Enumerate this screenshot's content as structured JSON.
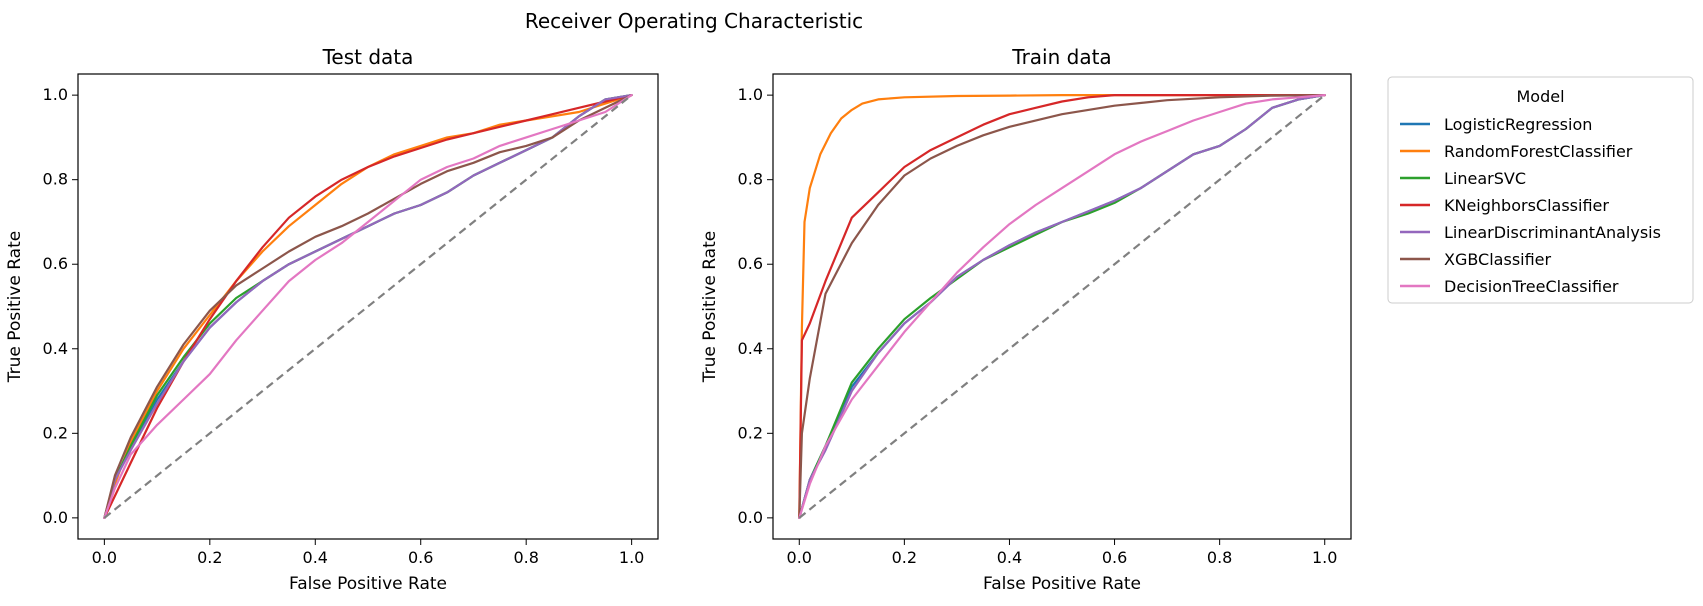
{
  "chart_data": {
    "type": "line",
    "title": "Receiver Operating Characteristic",
    "legend": {
      "title": "Model",
      "placement": "outside-right",
      "entries": [
        {
          "name": "LogisticRegression",
          "color": "#1f77b4"
        },
        {
          "name": "RandomForestClassifier",
          "color": "#ff7f0e"
        },
        {
          "name": "LinearSVC",
          "color": "#2ca02c"
        },
        {
          "name": "KNeighborsClassifier",
          "color": "#d62728"
        },
        {
          "name": "LinearDiscriminantAnalysis",
          "color": "#9467bd"
        },
        {
          "name": "XGBClassifier",
          "color": "#8c564b"
        },
        {
          "name": "DecisionTreeClassifier",
          "color": "#e377c2"
        }
      ]
    },
    "panels": [
      {
        "title": "Test data",
        "xlabel": "False Positive Rate",
        "ylabel": "True Positive Rate",
        "xlim": [
          -0.05,
          1.05
        ],
        "ylim": [
          -0.05,
          1.05
        ],
        "xticks": [
          "0.0",
          "0.2",
          "0.4",
          "0.6",
          "0.8",
          "1.0"
        ],
        "yticks": [
          "0.0",
          "0.2",
          "0.4",
          "0.6",
          "0.8",
          "1.0"
        ],
        "grid": false,
        "reference_line": {
          "x": [
            0,
            1
          ],
          "y": [
            0,
            1
          ],
          "color": "#808080",
          "style": "dashed"
        },
        "series": [
          {
            "name": "LogisticRegression",
            "color": "#1f77b4",
            "x": [
              0,
              0.02,
              0.05,
              0.1,
              0.15,
              0.2,
              0.25,
              0.3,
              0.35,
              0.4,
              0.45,
              0.5,
              0.55,
              0.6,
              0.65,
              0.7,
              0.75,
              0.8,
              0.85,
              0.9,
              0.95,
              1.0
            ],
            "y": [
              0,
              0.09,
              0.17,
              0.28,
              0.37,
              0.45,
              0.51,
              0.56,
              0.6,
              0.63,
              0.66,
              0.69,
              0.72,
              0.74,
              0.77,
              0.81,
              0.84,
              0.87,
              0.9,
              0.95,
              0.99,
              1.0
            ]
          },
          {
            "name": "RandomForestClassifier",
            "color": "#ff7f0e",
            "x": [
              0,
              0.02,
              0.05,
              0.1,
              0.15,
              0.2,
              0.25,
              0.3,
              0.35,
              0.4,
              0.45,
              0.5,
              0.55,
              0.6,
              0.65,
              0.7,
              0.75,
              0.8,
              0.85,
              0.9,
              0.95,
              1.0
            ],
            "y": [
              0,
              0.08,
              0.18,
              0.3,
              0.4,
              0.48,
              0.56,
              0.63,
              0.69,
              0.74,
              0.79,
              0.83,
              0.86,
              0.88,
              0.9,
              0.91,
              0.93,
              0.94,
              0.95,
              0.96,
              0.98,
              1.0
            ]
          },
          {
            "name": "LinearSVC",
            "color": "#2ca02c",
            "x": [
              0,
              0.02,
              0.05,
              0.1,
              0.15,
              0.2,
              0.25,
              0.3,
              0.35,
              0.4,
              0.45,
              0.5,
              0.55,
              0.6,
              0.65,
              0.7,
              0.75,
              0.8,
              0.85,
              0.9,
              0.95,
              1.0
            ],
            "y": [
              0,
              0.09,
              0.17,
              0.29,
              0.38,
              0.46,
              0.52,
              0.56,
              0.6,
              0.63,
              0.66,
              0.69,
              0.72,
              0.74,
              0.77,
              0.81,
              0.84,
              0.87,
              0.9,
              0.95,
              0.99,
              1.0
            ]
          },
          {
            "name": "KNeighborsClassifier",
            "color": "#d62728",
            "x": [
              0,
              0.05,
              0.1,
              0.15,
              0.2,
              0.25,
              0.3,
              0.35,
              0.4,
              0.45,
              0.5,
              0.55,
              0.6,
              0.65,
              0.7,
              0.75,
              0.8,
              0.85,
              0.9,
              0.95,
              1.0
            ],
            "y": [
              0,
              0.13,
              0.26,
              0.37,
              0.47,
              0.56,
              0.64,
              0.71,
              0.76,
              0.8,
              0.83,
              0.855,
              0.875,
              0.895,
              0.91,
              0.925,
              0.94,
              0.955,
              0.97,
              0.985,
              1.0
            ]
          },
          {
            "name": "LinearDiscriminantAnalysis",
            "color": "#9467bd",
            "x": [
              0,
              0.02,
              0.05,
              0.1,
              0.15,
              0.2,
              0.25,
              0.3,
              0.35,
              0.4,
              0.45,
              0.5,
              0.55,
              0.6,
              0.65,
              0.7,
              0.75,
              0.8,
              0.85,
              0.9,
              0.95,
              1.0
            ],
            "y": [
              0,
              0.09,
              0.16,
              0.27,
              0.37,
              0.45,
              0.51,
              0.56,
              0.6,
              0.63,
              0.66,
              0.69,
              0.72,
              0.74,
              0.77,
              0.81,
              0.84,
              0.87,
              0.9,
              0.95,
              0.99,
              1.0
            ]
          },
          {
            "name": "XGBClassifier",
            "color": "#8c564b",
            "x": [
              0,
              0.02,
              0.05,
              0.1,
              0.15,
              0.2,
              0.25,
              0.3,
              0.35,
              0.4,
              0.45,
              0.5,
              0.55,
              0.6,
              0.65,
              0.7,
              0.75,
              0.8,
              0.85,
              0.9,
              0.95,
              1.0
            ],
            "y": [
              0,
              0.1,
              0.19,
              0.31,
              0.41,
              0.49,
              0.55,
              0.59,
              0.63,
              0.665,
              0.69,
              0.72,
              0.755,
              0.79,
              0.82,
              0.84,
              0.865,
              0.88,
              0.9,
              0.94,
              0.97,
              1.0
            ]
          },
          {
            "name": "DecisionTreeClassifier",
            "color": "#e377c2",
            "x": [
              0,
              0.02,
              0.05,
              0.1,
              0.15,
              0.2,
              0.25,
              0.3,
              0.35,
              0.4,
              0.45,
              0.5,
              0.55,
              0.6,
              0.65,
              0.7,
              0.75,
              0.8,
              0.85,
              0.9,
              0.95,
              1.0
            ],
            "y": [
              0,
              0.07,
              0.15,
              0.22,
              0.28,
              0.34,
              0.42,
              0.49,
              0.56,
              0.61,
              0.65,
              0.7,
              0.75,
              0.8,
              0.83,
              0.85,
              0.88,
              0.9,
              0.92,
              0.94,
              0.96,
              1.0
            ]
          }
        ]
      },
      {
        "title": "Train data",
        "xlabel": "False Positive Rate",
        "ylabel": "True Positive Rate",
        "xlim": [
          -0.05,
          1.05
        ],
        "ylim": [
          -0.05,
          1.05
        ],
        "xticks": [
          "0.0",
          "0.2",
          "0.4",
          "0.6",
          "0.8",
          "1.0"
        ],
        "yticks": [
          "0.0",
          "0.2",
          "0.4",
          "0.6",
          "0.8",
          "1.0"
        ],
        "grid": false,
        "reference_line": {
          "x": [
            0,
            1
          ],
          "y": [
            0,
            1
          ],
          "color": "#808080",
          "style": "dashed"
        },
        "series": [
          {
            "name": "LogisticRegression",
            "color": "#1f77b4",
            "x": [
              0,
              0.02,
              0.05,
              0.1,
              0.15,
              0.2,
              0.25,
              0.3,
              0.35,
              0.4,
              0.45,
              0.5,
              0.55,
              0.6,
              0.65,
              0.7,
              0.75,
              0.8,
              0.85,
              0.9,
              0.95,
              1.0
            ],
            "y": [
              0,
              0.09,
              0.17,
              0.31,
              0.39,
              0.46,
              0.51,
              0.57,
              0.61,
              0.645,
              0.675,
              0.7,
              0.725,
              0.75,
              0.78,
              0.82,
              0.86,
              0.88,
              0.92,
              0.97,
              0.99,
              1.0
            ]
          },
          {
            "name": "RandomForestClassifier",
            "color": "#ff7f0e",
            "x": [
              0,
              0.005,
              0.01,
              0.02,
              0.04,
              0.06,
              0.08,
              0.1,
              0.12,
              0.15,
              0.2,
              0.3,
              0.4,
              0.5,
              0.6,
              0.7,
              0.8,
              0.9,
              1.0
            ],
            "y": [
              0,
              0.45,
              0.7,
              0.78,
              0.86,
              0.91,
              0.945,
              0.965,
              0.98,
              0.99,
              0.995,
              0.998,
              0.999,
              1.0,
              1.0,
              1.0,
              1.0,
              1.0,
              1.0
            ]
          },
          {
            "name": "LinearSVC",
            "color": "#2ca02c",
            "x": [
              0,
              0.02,
              0.05,
              0.1,
              0.15,
              0.2,
              0.25,
              0.3,
              0.35,
              0.4,
              0.45,
              0.5,
              0.55,
              0.6,
              0.65,
              0.7,
              0.75,
              0.8,
              0.85,
              0.9,
              0.95,
              1.0
            ],
            "y": [
              0,
              0.09,
              0.17,
              0.32,
              0.4,
              0.47,
              0.52,
              0.565,
              0.61,
              0.64,
              0.67,
              0.7,
              0.72,
              0.745,
              0.78,
              0.82,
              0.86,
              0.88,
              0.92,
              0.97,
              0.99,
              1.0
            ]
          },
          {
            "name": "KNeighborsClassifier",
            "color": "#d62728",
            "x": [
              0,
              0.005,
              0.02,
              0.05,
              0.1,
              0.15,
              0.2,
              0.25,
              0.3,
              0.35,
              0.4,
              0.45,
              0.5,
              0.55,
              0.6,
              0.7,
              0.8,
              0.9,
              1.0
            ],
            "y": [
              0,
              0.42,
              0.46,
              0.56,
              0.71,
              0.77,
              0.83,
              0.87,
              0.9,
              0.93,
              0.955,
              0.97,
              0.985,
              0.995,
              1.0,
              1.0,
              1.0,
              1.0,
              1.0
            ]
          },
          {
            "name": "LinearDiscriminantAnalysis",
            "color": "#9467bd",
            "x": [
              0,
              0.02,
              0.05,
              0.1,
              0.15,
              0.2,
              0.25,
              0.3,
              0.35,
              0.4,
              0.45,
              0.5,
              0.55,
              0.6,
              0.65,
              0.7,
              0.75,
              0.8,
              0.85,
              0.9,
              0.95,
              1.0
            ],
            "y": [
              0,
              0.09,
              0.16,
              0.3,
              0.39,
              0.46,
              0.51,
              0.57,
              0.61,
              0.645,
              0.675,
              0.7,
              0.725,
              0.75,
              0.78,
              0.82,
              0.86,
              0.88,
              0.92,
              0.97,
              0.99,
              1.0
            ]
          },
          {
            "name": "XGBClassifier",
            "color": "#8c564b",
            "x": [
              0,
              0.005,
              0.02,
              0.05,
              0.1,
              0.15,
              0.2,
              0.25,
              0.3,
              0.35,
              0.4,
              0.5,
              0.6,
              0.7,
              0.8,
              0.9,
              1.0
            ],
            "y": [
              0,
              0.2,
              0.33,
              0.53,
              0.65,
              0.74,
              0.81,
              0.85,
              0.88,
              0.905,
              0.925,
              0.955,
              0.975,
              0.988,
              0.995,
              0.999,
              1.0
            ]
          },
          {
            "name": "DecisionTreeClassifier",
            "color": "#e377c2",
            "x": [
              0,
              0.02,
              0.05,
              0.1,
              0.15,
              0.2,
              0.25,
              0.3,
              0.35,
              0.4,
              0.45,
              0.5,
              0.55,
              0.6,
              0.65,
              0.7,
              0.75,
              0.8,
              0.85,
              0.9,
              0.95,
              1.0
            ],
            "y": [
              0,
              0.08,
              0.17,
              0.28,
              0.36,
              0.44,
              0.51,
              0.58,
              0.64,
              0.695,
              0.74,
              0.78,
              0.82,
              0.86,
              0.89,
              0.915,
              0.94,
              0.96,
              0.98,
              0.99,
              0.995,
              1.0
            ]
          }
        ]
      }
    ]
  }
}
